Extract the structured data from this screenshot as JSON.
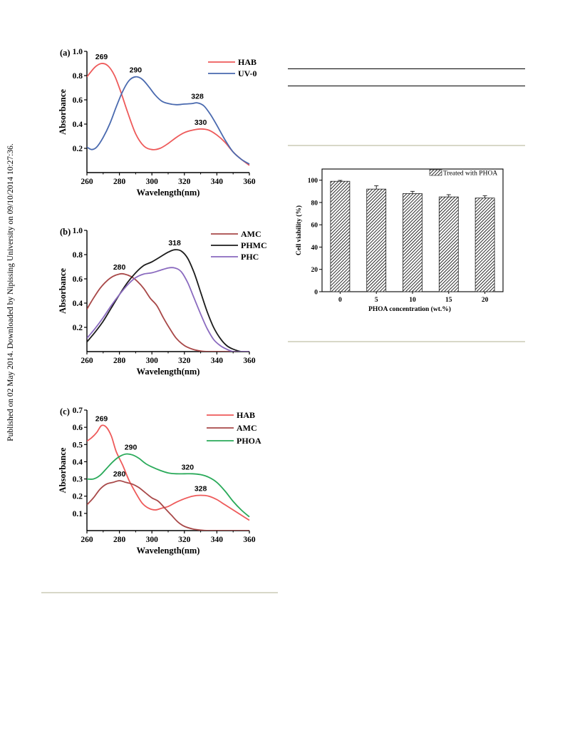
{
  "side_note": "Published on 02 May 2014. Downloaded by Nipissing University on 09/10/2014 10:27:36.",
  "chart_data": [
    {
      "type": "line",
      "panel_label": "(a)",
      "xlabel": "Wavelength(nm)",
      "ylabel": "Absorbance",
      "xlim": [
        260,
        360
      ],
      "ylim": [
        0,
        1.0
      ],
      "xticks": [
        260,
        280,
        300,
        320,
        340,
        360
      ],
      "yticks": [
        0.2,
        0.4,
        0.6,
        0.8,
        1.0
      ],
      "ytick_labels": [
        "0.2",
        "0.4",
        "0.6",
        "0.8",
        "1.0"
      ],
      "legend_position": "top-right",
      "series": [
        {
          "name": "HAB",
          "color": "#ee5a5a",
          "x": [
            260,
            265,
            269,
            273,
            277,
            281,
            285,
            290,
            295,
            300,
            305,
            310,
            315,
            320,
            325,
            330,
            335,
            340,
            345,
            350,
            355,
            360
          ],
          "y": [
            0.79,
            0.87,
            0.9,
            0.88,
            0.8,
            0.66,
            0.5,
            0.32,
            0.22,
            0.19,
            0.2,
            0.24,
            0.29,
            0.33,
            0.35,
            0.36,
            0.35,
            0.31,
            0.25,
            0.17,
            0.11,
            0.06
          ]
        },
        {
          "name": "UV-0",
          "color": "#4a6aaf",
          "x": [
            260,
            263,
            266,
            270,
            274,
            278,
            282,
            286,
            290,
            294,
            298,
            302,
            306,
            310,
            315,
            320,
            325,
            328,
            332,
            336,
            340,
            345,
            350,
            355,
            360
          ],
          "y": [
            0.21,
            0.19,
            0.21,
            0.29,
            0.4,
            0.54,
            0.67,
            0.76,
            0.79,
            0.77,
            0.71,
            0.64,
            0.59,
            0.57,
            0.56,
            0.565,
            0.57,
            0.575,
            0.55,
            0.48,
            0.39,
            0.27,
            0.17,
            0.11,
            0.07
          ]
        }
      ],
      "annotations": [
        {
          "text": "269",
          "x": 269,
          "y": 0.9
        },
        {
          "text": "290",
          "x": 290,
          "y": 0.79
        },
        {
          "text": "328",
          "x": 328,
          "y": 0.575
        },
        {
          "text": "330",
          "x": 330,
          "y": 0.36
        }
      ]
    },
    {
      "type": "line",
      "panel_label": "(b)",
      "xlabel": "Wavelength(nm)",
      "ylabel": "Absorbance",
      "xlim": [
        260,
        360
      ],
      "ylim": [
        0,
        1.0
      ],
      "xticks": [
        260,
        280,
        300,
        320,
        340,
        360
      ],
      "yticks": [
        0.2,
        0.4,
        0.6,
        0.8,
        1.0
      ],
      "ytick_labels": [
        "0.2",
        "0.4",
        "0.6",
        "0.8",
        "1.0"
      ],
      "legend_position": "top-right",
      "series": [
        {
          "name": "AMC",
          "color": "#a84848",
          "x": [
            260,
            264,
            268,
            272,
            276,
            280,
            283,
            287,
            291,
            295,
            299,
            303,
            307,
            311,
            315,
            320,
            325,
            330,
            335,
            340,
            350,
            360
          ],
          "y": [
            0.35,
            0.44,
            0.52,
            0.58,
            0.62,
            0.64,
            0.64,
            0.62,
            0.58,
            0.52,
            0.44,
            0.38,
            0.28,
            0.19,
            0.11,
            0.05,
            0.02,
            0.005,
            0.0,
            0.0,
            0.0,
            0.0
          ]
        },
        {
          "name": "PHMC",
          "color": "#1c1c1c",
          "x": [
            260,
            265,
            270,
            275,
            280,
            285,
            290,
            295,
            300,
            305,
            310,
            314,
            318,
            322,
            326,
            330,
            334,
            338,
            342,
            346,
            350,
            355,
            360
          ],
          "y": [
            0.08,
            0.16,
            0.25,
            0.36,
            0.47,
            0.57,
            0.65,
            0.71,
            0.74,
            0.78,
            0.82,
            0.84,
            0.83,
            0.77,
            0.65,
            0.49,
            0.33,
            0.2,
            0.11,
            0.05,
            0.02,
            0.0,
            0.0
          ]
        },
        {
          "name": "PHC",
          "color": "#8a6abf",
          "x": [
            260,
            265,
            270,
            275,
            280,
            285,
            290,
            295,
            300,
            305,
            310,
            314,
            318,
            322,
            326,
            330,
            334,
            338,
            342,
            346,
            350,
            355,
            360
          ],
          "y": [
            0.11,
            0.19,
            0.28,
            0.38,
            0.47,
            0.55,
            0.61,
            0.64,
            0.65,
            0.67,
            0.69,
            0.69,
            0.66,
            0.57,
            0.44,
            0.31,
            0.19,
            0.1,
            0.05,
            0.02,
            0.0,
            0.0,
            0.0
          ]
        }
      ],
      "annotations": [
        {
          "text": "280",
          "x": 280,
          "y": 0.64
        },
        {
          "text": "318",
          "x": 314,
          "y": 0.84
        }
      ]
    },
    {
      "type": "line",
      "panel_label": "(c)",
      "xlabel": "Wavelength(nm)",
      "ylabel": "Absorbance",
      "xlim": [
        260,
        360
      ],
      "ylim": [
        0,
        0.7
      ],
      "xticks": [
        260,
        280,
        300,
        320,
        340,
        360
      ],
      "yticks": [
        0.1,
        0.2,
        0.3,
        0.4,
        0.5,
        0.6,
        0.7
      ],
      "ytick_labels": [
        "0.1",
        "0.2",
        "0.3",
        "0.4",
        "0.5",
        "0.6",
        "0.7"
      ],
      "legend_position": "top-right",
      "series": [
        {
          "name": "HAB",
          "color": "#ee5a5a",
          "x": [
            260,
            263,
            266,
            269,
            272,
            275,
            278,
            282,
            286,
            290,
            294,
            298,
            302,
            306,
            310,
            315,
            320,
            325,
            330,
            335,
            340,
            345,
            350,
            355,
            360
          ],
          "y": [
            0.52,
            0.54,
            0.57,
            0.61,
            0.6,
            0.55,
            0.46,
            0.38,
            0.29,
            0.22,
            0.16,
            0.13,
            0.12,
            0.13,
            0.14,
            0.165,
            0.185,
            0.2,
            0.205,
            0.2,
            0.18,
            0.15,
            0.12,
            0.09,
            0.06
          ]
        },
        {
          "name": "AMC",
          "color": "#a84848",
          "x": [
            260,
            264,
            268,
            272,
            276,
            280,
            284,
            288,
            292,
            296,
            300,
            304,
            308,
            312,
            316,
            320,
            325,
            330,
            335,
            340,
            350,
            360
          ],
          "y": [
            0.15,
            0.19,
            0.24,
            0.27,
            0.28,
            0.29,
            0.28,
            0.27,
            0.25,
            0.22,
            0.19,
            0.17,
            0.13,
            0.09,
            0.05,
            0.025,
            0.01,
            0.003,
            0.0,
            0.0,
            0.0,
            0.0
          ]
        },
        {
          "name": "PHOA",
          "color": "#2aaa5a",
          "x": [
            260,
            264,
            268,
            272,
            276,
            280,
            284,
            288,
            292,
            296,
            300,
            305,
            310,
            315,
            320,
            325,
            330,
            335,
            340,
            345,
            350,
            355,
            360
          ],
          "y": [
            0.3,
            0.3,
            0.32,
            0.36,
            0.4,
            0.43,
            0.445,
            0.44,
            0.42,
            0.39,
            0.37,
            0.35,
            0.335,
            0.33,
            0.33,
            0.33,
            0.325,
            0.31,
            0.28,
            0.23,
            0.17,
            0.12,
            0.08
          ]
        }
      ],
      "annotations": [
        {
          "text": "269",
          "x": 269,
          "y": 0.61
        },
        {
          "text": "290",
          "x": 287,
          "y": 0.445
        },
        {
          "text": "280",
          "x": 280,
          "y": 0.29
        },
        {
          "text": "320",
          "x": 322,
          "y": 0.33
        },
        {
          "text": "328",
          "x": 330,
          "y": 0.205
        }
      ]
    },
    {
      "type": "bar",
      "xlabel": "PHOA concentration (wt.%)",
      "ylabel": "Cell viability (%)",
      "categories": [
        "0",
        "5",
        "10",
        "15",
        "20"
      ],
      "series": [
        {
          "name": "Treated with PHOA",
          "values": [
            99,
            92,
            88,
            85,
            84
          ]
        }
      ],
      "error_bars": [
        0.8,
        3,
        2,
        2,
        2
      ],
      "ylim": [
        0,
        110
      ],
      "yticks": [
        0,
        20,
        40,
        60,
        80,
        100
      ],
      "legend_position": "top-right"
    }
  ]
}
